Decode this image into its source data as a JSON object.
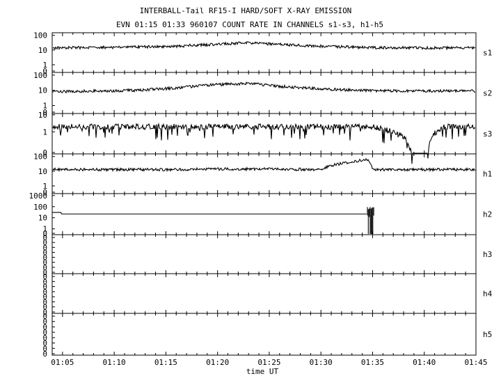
{
  "chart_data": {
    "type": "line",
    "title": "INTERBALL-Tail RF15-I HARD/SOFT X-RAY EMISSION",
    "subtitle": "EVN 01:15 01:33 960107  COUNT RATE IN CHANNELS s1-s3, h1-h5",
    "xlabel": "time UT",
    "x_ticks": [
      "01:05",
      "01:10",
      "01:15",
      "01:20",
      "01:25",
      "01:30",
      "01:35",
      "01:40",
      "01:45"
    ],
    "xlim": [
      "01:04",
      "01:45"
    ],
    "y_scale": "log",
    "grid": false,
    "panels": [
      {
        "name": "s1",
        "y_ticks": [
          "100",
          "10",
          "1",
          "0"
        ],
        "ylim": [
          0.3,
          150
        ],
        "series": {
          "x": [
            "01:04",
            "01:08",
            "01:12",
            "01:16",
            "01:20",
            "01:23",
            "01:26",
            "01:30",
            "01:34",
            "01:38",
            "01:42",
            "01:45"
          ],
          "y": [
            14,
            15,
            16,
            18,
            25,
            30,
            24,
            18,
            15,
            14,
            14,
            14
          ]
        }
      },
      {
        "name": "s2",
        "y_ticks": [
          "100",
          "10",
          "1",
          "0"
        ],
        "ylim": [
          0.3,
          150
        ],
        "series": {
          "x": [
            "01:04",
            "01:08",
            "01:12",
            "01:16",
            "01:20",
            "01:23",
            "01:26",
            "01:30",
            "01:34",
            "01:38",
            "01:42",
            "01:45"
          ],
          "y": [
            8,
            9,
            10,
            14,
            24,
            28,
            18,
            12,
            10,
            9,
            9,
            9
          ]
        }
      },
      {
        "name": "s3",
        "y_ticks": [
          "10",
          "1",
          "0"
        ],
        "ylim": [
          0.05,
          12
        ],
        "series": {
          "x": [
            "01:04",
            "01:10",
            "01:15",
            "01:20",
            "01:25",
            "01:30",
            "01:35",
            "01:38:50",
            "01:40:20",
            "01:42",
            "01:45"
          ],
          "y": [
            2,
            2,
            2,
            2,
            2,
            2,
            2,
            0,
            0,
            2,
            2
          ]
        }
      },
      {
        "name": "h1",
        "y_ticks": [
          "100",
          "10",
          "1",
          "0"
        ],
        "ylim": [
          0.3,
          150
        ],
        "series": {
          "x": [
            "01:04",
            "01:10",
            "01:15",
            "01:20",
            "01:25",
            "01:30",
            "01:34:30",
            "01:35",
            "01:40",
            "01:45"
          ],
          "y": [
            13,
            13,
            13,
            14,
            14,
            13,
            60,
            13,
            13,
            13
          ]
        }
      },
      {
        "name": "h2",
        "y_ticks": [
          "1000",
          "100",
          "10",
          "1",
          "0"
        ],
        "ylim": [
          0.3,
          1500
        ],
        "series": {
          "x": [
            "01:04",
            "01:04:50",
            "01:04:55",
            "01:34:25",
            "01:34:30",
            "01:35:10",
            "01:35:15"
          ],
          "y": [
            30,
            30,
            22,
            22,
            80,
            50,
            0
          ]
        }
      },
      {
        "name": "h3",
        "y_ticks": [
          "0",
          "0",
          "0",
          "0",
          "0",
          "0",
          "0",
          "0"
        ],
        "series": {
          "x": [],
          "y": []
        }
      },
      {
        "name": "h4",
        "y_ticks": [
          "0",
          "0",
          "0",
          "0",
          "0",
          "0",
          "0",
          "0"
        ],
        "series": {
          "x": [],
          "y": []
        }
      },
      {
        "name": "h5",
        "y_ticks": [
          "0",
          "0",
          "0",
          "0",
          "0",
          "0",
          "0",
          "0"
        ],
        "series": {
          "x": [],
          "y": []
        }
      }
    ]
  }
}
